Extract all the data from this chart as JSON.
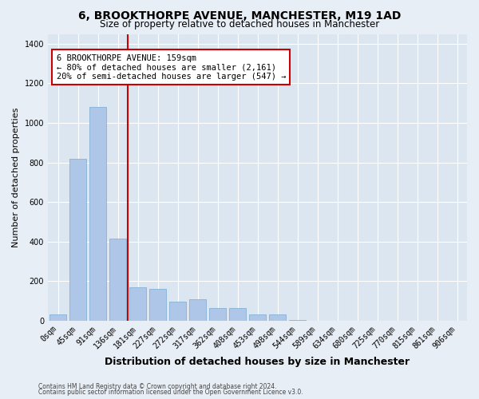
{
  "title": "6, BROOKTHORPE AVENUE, MANCHESTER, M19 1AD",
  "subtitle": "Size of property relative to detached houses in Manchester",
  "xlabel": "Distribution of detached houses by size in Manchester",
  "ylabel": "Number of detached properties",
  "bar_labels": [
    "0sqm",
    "45sqm",
    "91sqm",
    "136sqm",
    "181sqm",
    "227sqm",
    "272sqm",
    "317sqm",
    "362sqm",
    "408sqm",
    "453sqm",
    "498sqm",
    "544sqm",
    "589sqm",
    "634sqm",
    "680sqm",
    "725sqm",
    "770sqm",
    "815sqm",
    "861sqm",
    "906sqm"
  ],
  "bar_values": [
    30,
    820,
    1080,
    415,
    170,
    160,
    95,
    110,
    65,
    65,
    30,
    30,
    5,
    0,
    0,
    0,
    0,
    0,
    0,
    0,
    0
  ],
  "bar_color": "#aec6e8",
  "bar_edge_color": "#7aaad0",
  "vline_color": "#cc0000",
  "vline_x": 3.51,
  "annotation_line1": "6 BROOKTHORPE AVENUE: 159sqm",
  "annotation_line2": "← 80% of detached houses are smaller (2,161)",
  "annotation_line3": "20% of semi-detached houses are larger (547) →",
  "annotation_box_color": "#ffffff",
  "annotation_border_color": "#cc0000",
  "ylim": [
    0,
    1450
  ],
  "yticks": [
    0,
    200,
    400,
    600,
    800,
    1000,
    1200,
    1400
  ],
  "bg_color": "#e8eef5",
  "plot_bg_color": "#dce6f0",
  "footer_line1": "Contains HM Land Registry data © Crown copyright and database right 2024.",
  "footer_line2": "Contains public sector information licensed under the Open Government Licence v3.0.",
  "title_fontsize": 10,
  "subtitle_fontsize": 8.5,
  "ylabel_fontsize": 8,
  "xlabel_fontsize": 9,
  "tick_fontsize": 7,
  "annotation_fontsize": 7.5,
  "footer_fontsize": 5.5
}
